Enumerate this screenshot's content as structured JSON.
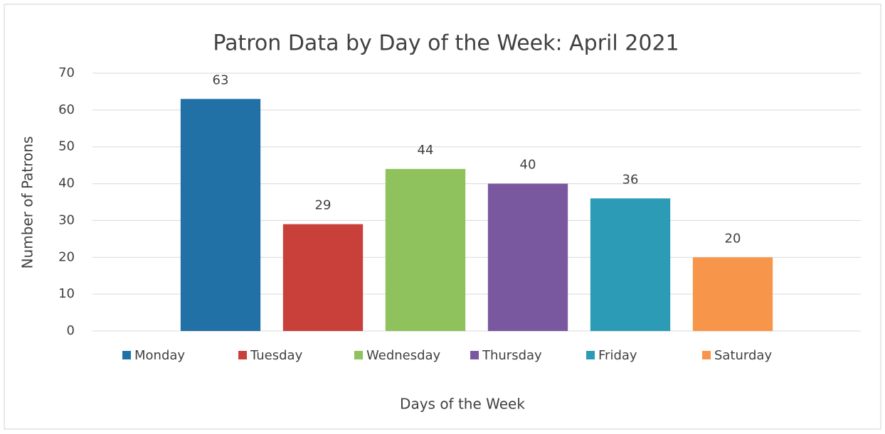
{
  "chart_data": {
    "type": "bar",
    "title": "Patron Data by Day of the Week: April 2021",
    "categories": [
      "Monday",
      "Tuesday",
      "Wednesday",
      "Thursday",
      "Friday",
      "Saturday"
    ],
    "values": [
      63,
      29,
      44,
      40,
      36,
      20
    ],
    "colors": [
      "#2271a6",
      "#c9403a",
      "#8fc15c",
      "#7a58a0",
      "#2b9bb6",
      "#f7964a"
    ],
    "ylim": [
      0,
      70
    ],
    "yticks": [
      0,
      10,
      20,
      30,
      40,
      50,
      60,
      70
    ],
    "grid": true,
    "y_label": "Number of Patrons",
    "x_label": "Days of the Week",
    "legend": "bottom"
  }
}
